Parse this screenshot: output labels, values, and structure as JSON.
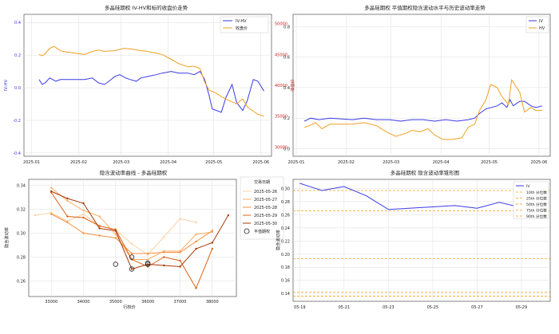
{
  "chart_data": [
    {
      "id": "tl",
      "type": "line",
      "title": "多晶硅期权 IV-HV和标的收盘价走势",
      "ylabel_left": "IV-HV",
      "ylabel_right": "收盘价",
      "x_ticks": [
        "2025-01",
        "2025-02",
        "2025-03",
        "2025-04",
        "2025-05",
        "2025-06"
      ],
      "y_left_ticks": [
        "0.4",
        "0.2",
        "0.0",
        "-0.2",
        "-0.4"
      ],
      "y_right_ticks": [
        "50000",
        "45000",
        "40000",
        "35000",
        "30000"
      ],
      "ylim_left": [
        -0.42,
        0.45
      ],
      "ylim_right": [
        28500,
        51500
      ],
      "grid": true,
      "legend_position": "top-right",
      "series": [
        {
          "name": "IV-HV",
          "axis": "left",
          "color": "#3a3ae6",
          "points": [
            [
              "2025-01-06",
              0.05
            ],
            [
              "2025-01-08",
              0.02
            ],
            [
              "2025-01-10",
              0.03
            ],
            [
              "2025-01-13",
              0.06
            ],
            [
              "2025-01-15",
              0.05
            ],
            [
              "2025-01-17",
              0.04
            ],
            [
              "2025-01-20",
              0.05
            ],
            [
              "2025-01-24",
              0.05
            ],
            [
              "2025-02-05",
              0.05
            ],
            [
              "2025-02-10",
              0.06
            ],
            [
              "2025-02-14",
              0.03
            ],
            [
              "2025-02-18",
              0.02
            ],
            [
              "2025-02-21",
              0.04
            ],
            [
              "2025-02-25",
              0.07
            ],
            [
              "2025-02-28",
              0.08
            ],
            [
              "2025-03-04",
              0.06
            ],
            [
              "2025-03-07",
              0.05
            ],
            [
              "2025-03-11",
              0.04
            ],
            [
              "2025-03-14",
              0.06
            ],
            [
              "2025-03-19",
              0.07
            ],
            [
              "2025-03-24",
              0.08
            ],
            [
              "2025-03-28",
              0.09
            ],
            [
              "2025-04-03",
              0.1
            ],
            [
              "2025-04-08",
              0.09
            ],
            [
              "2025-04-14",
              0.09
            ],
            [
              "2025-04-18",
              0.08
            ],
            [
              "2025-04-22",
              0.1
            ],
            [
              "2025-04-25",
              0.05
            ],
            [
              "2025-04-28",
              -0.05
            ],
            [
              "2025-04-30",
              -0.13
            ],
            [
              "2025-05-06",
              -0.15
            ],
            [
              "2025-05-09",
              -0.06
            ],
            [
              "2025-05-13",
              0.02
            ],
            [
              "2025-05-16",
              -0.09
            ],
            [
              "2025-05-20",
              -0.14
            ],
            [
              "2025-05-23",
              -0.08
            ],
            [
              "2025-05-27",
              0.05
            ],
            [
              "2025-05-30",
              0.04
            ],
            [
              "2025-06-03",
              -0.02
            ]
          ]
        },
        {
          "name": "收盘价",
          "axis": "right",
          "color": "#f0a020",
          "points": [
            [
              "2025-01-06",
              45000
            ],
            [
              "2025-01-08",
              44800
            ],
            [
              "2025-01-10",
              45100
            ],
            [
              "2025-01-13",
              46000
            ],
            [
              "2025-01-16",
              46300
            ],
            [
              "2025-01-20",
              45600
            ],
            [
              "2025-01-24",
              45400
            ],
            [
              "2025-02-05",
              45000
            ],
            [
              "2025-02-10",
              45500
            ],
            [
              "2025-02-14",
              45700
            ],
            [
              "2025-02-18",
              45500
            ],
            [
              "2025-02-24",
              45600
            ],
            [
              "2025-03-03",
              46000
            ],
            [
              "2025-03-07",
              45900
            ],
            [
              "2025-03-12",
              45700
            ],
            [
              "2025-03-18",
              45500
            ],
            [
              "2025-03-24",
              45200
            ],
            [
              "2025-03-28",
              45000
            ],
            [
              "2025-04-03",
              44200
            ],
            [
              "2025-04-08",
              43500
            ],
            [
              "2025-04-14",
              43000
            ],
            [
              "2025-04-18",
              43100
            ],
            [
              "2025-04-22",
              42700
            ],
            [
              "2025-04-25",
              40500
            ],
            [
              "2025-04-28",
              39200
            ],
            [
              "2025-05-02",
              38800
            ],
            [
              "2025-05-07",
              38000
            ],
            [
              "2025-05-12",
              37400
            ],
            [
              "2025-05-16",
              37000
            ],
            [
              "2025-05-20",
              37800
            ],
            [
              "2025-05-23",
              36500
            ],
            [
              "2025-05-27",
              35800
            ],
            [
              "2025-05-30",
              35300
            ],
            [
              "2025-06-03",
              35000
            ]
          ]
        }
      ]
    },
    {
      "id": "tr",
      "type": "line",
      "title": "多晶硅期权 平值期权隐含波动水平与历史波动率走势",
      "x_ticks": [
        "2025-01",
        "2025-02",
        "2025-03",
        "2025-04",
        "2025-05",
        "2025-06"
      ],
      "y_ticks": [
        "0.8",
        "0.6",
        "0.4",
        "0.2",
        "0.0"
      ],
      "ylim": [
        -0.05,
        0.88
      ],
      "grid": true,
      "legend_position": "top-right",
      "series": [
        {
          "name": "IV",
          "color": "#3a3ae6",
          "points": [
            [
              "2025-01-06",
              0.18
            ],
            [
              "2025-01-10",
              0.2
            ],
            [
              "2025-01-15",
              0.19
            ],
            [
              "2025-01-22",
              0.2
            ],
            [
              "2025-02-05",
              0.19
            ],
            [
              "2025-02-12",
              0.2
            ],
            [
              "2025-02-20",
              0.19
            ],
            [
              "2025-02-28",
              0.19
            ],
            [
              "2025-03-07",
              0.18
            ],
            [
              "2025-03-14",
              0.19
            ],
            [
              "2025-03-21",
              0.19
            ],
            [
              "2025-03-28",
              0.18
            ],
            [
              "2025-04-04",
              0.19
            ],
            [
              "2025-04-11",
              0.18
            ],
            [
              "2025-04-18",
              0.19
            ],
            [
              "2025-04-22",
              0.2
            ],
            [
              "2025-04-25",
              0.23
            ],
            [
              "2025-04-29",
              0.26
            ],
            [
              "2025-05-06",
              0.28
            ],
            [
              "2025-05-09",
              0.3
            ],
            [
              "2025-05-12",
              0.27
            ],
            [
              "2025-05-14",
              0.32
            ],
            [
              "2025-05-16",
              0.28
            ],
            [
              "2025-05-20",
              0.31
            ],
            [
              "2025-05-23",
              0.31
            ],
            [
              "2025-05-27",
              0.28
            ],
            [
              "2025-05-30",
              0.27
            ],
            [
              "2025-06-03",
              0.28
            ]
          ]
        },
        {
          "name": "HV",
          "color": "#f0a020",
          "points": [
            [
              "2025-01-06",
              0.14
            ],
            [
              "2025-01-09",
              0.15
            ],
            [
              "2025-01-13",
              0.17
            ],
            [
              "2025-01-17",
              0.13
            ],
            [
              "2025-01-22",
              0.16
            ],
            [
              "2025-02-05",
              0.16
            ],
            [
              "2025-02-12",
              0.17
            ],
            [
              "2025-02-20",
              0.15
            ],
            [
              "2025-02-26",
              0.11
            ],
            [
              "2025-03-04",
              0.08
            ],
            [
              "2025-03-10",
              0.1
            ],
            [
              "2025-03-14",
              0.12
            ],
            [
              "2025-03-19",
              0.11
            ],
            [
              "2025-03-24",
              0.13
            ],
            [
              "2025-03-28",
              0.09
            ],
            [
              "2025-04-02",
              0.06
            ],
            [
              "2025-04-08",
              0.06
            ],
            [
              "2025-04-14",
              0.07
            ],
            [
              "2025-04-18",
              0.14
            ],
            [
              "2025-04-22",
              0.16
            ],
            [
              "2025-04-25",
              0.25
            ],
            [
              "2025-04-29",
              0.32
            ],
            [
              "2025-05-02",
              0.42
            ],
            [
              "2025-05-06",
              0.4
            ],
            [
              "2025-05-09",
              0.34
            ],
            [
              "2025-05-13",
              0.29
            ],
            [
              "2025-05-15",
              0.45
            ],
            [
              "2025-05-20",
              0.37
            ],
            [
              "2025-05-23",
              0.24
            ],
            [
              "2025-05-27",
              0.27
            ],
            [
              "2025-05-30",
              0.25
            ],
            [
              "2025-06-03",
              0.25
            ]
          ]
        }
      ]
    },
    {
      "id": "bl",
      "type": "line",
      "title": "隐含波动率曲线 - 多晶硅期权",
      "xlabel": "行权价",
      "ylabel": "隐含波动率",
      "x_ticks": [
        33000,
        34000,
        35000,
        36000,
        37000,
        38000
      ],
      "y_ticks": [
        "0.34",
        "0.32",
        "0.30",
        "0.28",
        "0.26"
      ],
      "xlim": [
        32300,
        38750
      ],
      "ylim": [
        0.247,
        0.345
      ],
      "grid": true,
      "legend_title": "交易日期",
      "legend_position": "top-right",
      "series": [
        {
          "name": "2025-05-26",
          "color": "#fdd0a2",
          "points": [
            [
              32500,
              0.315
            ],
            [
              33000,
              0.317
            ],
            [
              33500,
              0.31
            ],
            [
              34000,
              0.316
            ],
            [
              34500,
              0.306
            ],
            [
              35000,
              0.303
            ],
            [
              35500,
              0.291
            ],
            [
              36000,
              0.282
            ],
            [
              36500,
              0.297
            ],
            [
              37000,
              0.312
            ],
            [
              37500,
              0.309
            ]
          ]
        },
        {
          "name": "2025-05-27",
          "color": "#fdae6b",
          "points": [
            [
              33000,
              0.338
            ],
            [
              33500,
              0.327
            ],
            [
              34000,
              0.319
            ],
            [
              34500,
              0.314
            ],
            [
              35000,
              0.299
            ],
            [
              35500,
              0.278
            ],
            [
              36000,
              0.278
            ],
            [
              36500,
              0.285
            ],
            [
              37000,
              0.285
            ],
            [
              37500,
              0.299
            ],
            [
              38000,
              0.301
            ]
          ]
        },
        {
          "name": "2025-05-28",
          "color": "#f98e3a",
          "points": [
            [
              33000,
              0.316
            ],
            [
              33500,
              0.309
            ],
            [
              34000,
              0.3
            ],
            [
              34500,
              0.298
            ],
            [
              35000,
              0.296
            ],
            [
              35500,
              0.283
            ],
            [
              36000,
              0.283
            ],
            [
              36500,
              0.284
            ],
            [
              37000,
              0.284
            ],
            [
              37500,
              0.293
            ],
            [
              38000,
              0.302
            ]
          ]
        },
        {
          "name": "2025-05-29",
          "color": "#dd6314",
          "points": [
            [
              33000,
              0.334
            ],
            [
              33500,
              0.314
            ],
            [
              34000,
              0.313
            ],
            [
              34500,
              0.306
            ],
            [
              35000,
              0.303
            ],
            [
              35500,
              0.278
            ],
            [
              36000,
              0.272
            ],
            [
              36500,
              0.28
            ],
            [
              37000,
              0.277
            ],
            [
              37500,
              0.254
            ],
            [
              38000,
              0.287
            ]
          ]
        },
        {
          "name": "2025-05-30",
          "color": "#a63a07",
          "points": [
            [
              33000,
              0.335
            ],
            [
              33500,
              0.329
            ],
            [
              34000,
              0.325
            ],
            [
              34500,
              0.304
            ],
            [
              35000,
              0.302
            ],
            [
              35500,
              0.27
            ],
            [
              36000,
              0.274
            ],
            [
              36500,
              0.273
            ],
            [
              37000,
              0.272
            ],
            [
              37500,
              0.287
            ],
            [
              38000,
              0.292
            ],
            [
              38500,
              0.315
            ]
          ]
        }
      ],
      "atm_label": "平值期权",
      "atm_points": [
        [
          35000,
          0.274
        ],
        [
          35500,
          0.28
        ],
        [
          35500,
          0.27
        ],
        [
          36000,
          0.275
        ],
        [
          36000,
          0.274
        ]
      ]
    },
    {
      "id": "br",
      "type": "line",
      "title": "多晶硅期权 隐含波动率锥形图",
      "ylabel": "隐含波动率",
      "x_ticks": [
        "05-19",
        "05-21",
        "05-23",
        "05-25",
        "05-27",
        "05-29"
      ],
      "y_ticks": [
        "0.30",
        "0.28",
        "0.26",
        "0.24",
        "0.22",
        "0.20",
        "0.18",
        "0.16",
        "0.14"
      ],
      "xlim": [
        18.7,
        30.3
      ],
      "ylim": [
        0.128,
        0.314
      ],
      "grid": true,
      "legend_position": "top-right",
      "series": [
        {
          "name": "IV",
          "color": "#3a3ae6",
          "points": [
            [
              19,
              0.308
            ],
            [
              20,
              0.297
            ],
            [
              21,
              0.303
            ],
            [
              22,
              0.289
            ],
            [
              23,
              0.268
            ],
            [
              26,
              0.274
            ],
            [
              27,
              0.27
            ],
            [
              28,
              0.279
            ],
            [
              29,
              0.271
            ],
            [
              30,
              0.27
            ]
          ]
        }
      ],
      "percentiles": [
        {
          "name": "10th 分位数",
          "value": 0.136,
          "color": "#f0a020"
        },
        {
          "name": "25th 分位数",
          "value": 0.142,
          "color": "#f0a020"
        },
        {
          "name": "50th 分位数",
          "value": 0.193,
          "color": "#f0a020"
        },
        {
          "name": "75th 分位数",
          "value": 0.266,
          "color": "#f0a020"
        },
        {
          "name": "90th 分位数",
          "value": 0.297,
          "color": "#f0a020"
        }
      ]
    }
  ]
}
